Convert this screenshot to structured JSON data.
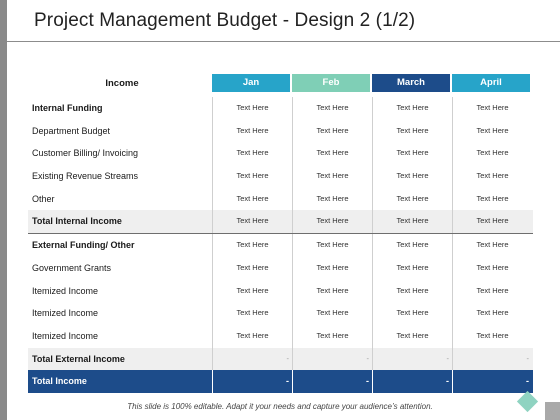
{
  "title": "Project Management Budget - Design 2 (1/2)",
  "table": {
    "header_label": "Income",
    "months": [
      "Jan",
      "Feb",
      "March",
      "April"
    ],
    "rows": [
      {
        "label": "Internal Funding",
        "cells": [
          "Text Here",
          "Text Here",
          "Text Here",
          "Text Here"
        ]
      },
      {
        "label": "Department Budget",
        "cells": [
          "Text Here",
          "Text Here",
          "Text Here",
          "Text Here"
        ]
      },
      {
        "label": "Customer Billing/  Invoicing",
        "cells": [
          "Text Here",
          "Text Here",
          "Text Here",
          "Text Here"
        ]
      },
      {
        "label": "Existing Revenue Streams",
        "cells": [
          "Text Here",
          "Text Here",
          "Text Here",
          "Text Here"
        ]
      },
      {
        "label": "Other",
        "cells": [
          "Text Here",
          "Text Here",
          "Text Here",
          "Text Here"
        ]
      },
      {
        "label": "Total Internal Income",
        "cells": [
          "Text Here",
          "Text Here",
          "Text Here",
          "Text Here"
        ]
      },
      {
        "label": "External Funding/  Other",
        "cells": [
          "Text Here",
          "Text Here",
          "Text Here",
          "Text Here"
        ]
      },
      {
        "label": "Government Grants",
        "cells": [
          "Text Here",
          "Text Here",
          "Text Here",
          "Text Here"
        ]
      },
      {
        "label": "Itemized Income",
        "cells": [
          "Text Here",
          "Text Here",
          "Text Here",
          "Text Here"
        ]
      },
      {
        "label": "Itemized Income",
        "cells": [
          "Text Here",
          "Text Here",
          "Text Here",
          "Text Here"
        ]
      },
      {
        "label": "Itemized Income",
        "cells": [
          "Text Here",
          "Text Here",
          "Text Here",
          "Text Here"
        ]
      },
      {
        "label": "Total External Income",
        "cells": [
          "-",
          "-",
          "-",
          "-"
        ]
      },
      {
        "label": "Total Income",
        "cells": [
          "-",
          "-",
          "-",
          "-"
        ]
      }
    ]
  },
  "footer": "This slide is 100% editable. Adapt it your needs and capture your audience’s attention.",
  "colors": {
    "jan": "#27a4c9",
    "feb": "#7fcfb6",
    "march": "#1d4c8a",
    "april": "#27a4c9",
    "total_row": "#1d4c8a",
    "accent_diamond": "#8fd3c1"
  }
}
